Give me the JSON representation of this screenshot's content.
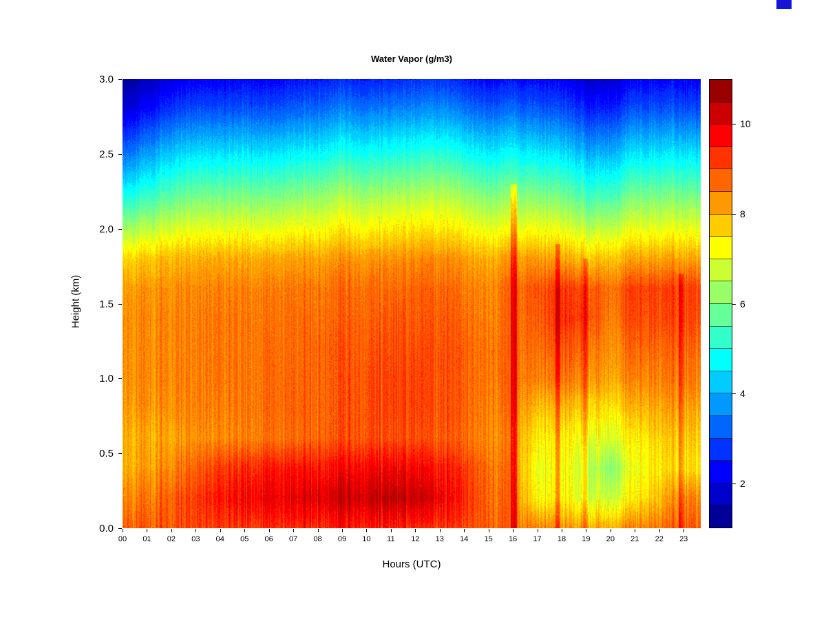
{
  "page": {
    "background": "#ffffff"
  },
  "corner_artifact_color": "#1515d6",
  "chart_data": {
    "type": "heatmap",
    "title": "Water Vapor (g/m3)",
    "xlabel": "Hours (UTC)",
    "ylabel": "Height (km)",
    "x_tick_labels": [
      "00",
      "01",
      "02",
      "03",
      "04",
      "05",
      "06",
      "07",
      "08",
      "09",
      "10",
      "11",
      "12",
      "13",
      "14",
      "15",
      "16",
      "17",
      "18",
      "19",
      "20",
      "21",
      "22",
      "23"
    ],
    "y_tick_values": [
      3.0,
      2.5,
      2.0,
      1.5,
      1.0,
      0.5,
      0.0
    ],
    "y_tick_labels": [
      "3.0",
      "2.5",
      "2.0",
      "1.5",
      "1.0",
      "0.5",
      "0.0"
    ],
    "x_axis_span": 23.7,
    "y_range": [
      0,
      3
    ],
    "value_range": [
      1,
      11
    ],
    "colorbar_ticks": [
      2,
      4,
      6,
      8,
      10
    ],
    "legend_position": "right",
    "grid_on": false,
    "colormap_colors": [
      "#000099",
      "#0000CC",
      "#0000FF",
      "#0033FF",
      "#0066FF",
      "#0099FF",
      "#00CCFF",
      "#00FFFF",
      "#33FFCC",
      "#66FF99",
      "#99FF66",
      "#CCFF33",
      "#FFFF00",
      "#FFCC00",
      "#FF9900",
      "#FF6600",
      "#FF3300",
      "#FF0000",
      "#CC0000",
      "#990000"
    ],
    "grid_heights_km": [
      3.0,
      2.8,
      2.6,
      2.4,
      2.2,
      2.0,
      1.8,
      1.6,
      1.4,
      1.2,
      1.0,
      0.8,
      0.6,
      0.4,
      0.2,
      0.0
    ],
    "grid_hours": [
      0,
      1,
      2,
      3,
      4,
      5,
      6,
      7,
      8,
      9,
      10,
      11,
      12,
      13,
      14,
      15,
      16,
      17,
      18,
      19,
      20,
      21,
      22,
      23
    ],
    "values_grid": [
      [
        1.2,
        1.6,
        2.0,
        2.2,
        2.2,
        2.3,
        2.2,
        2.4,
        2.5,
        2.6,
        2.5,
        2.6,
        2.7,
        2.8,
        2.5,
        2.3,
        2.4,
        2.3,
        2.2,
        1.8,
        1.8,
        2.2,
        2.3,
        2.2
      ],
      [
        1.8,
        2.3,
        2.8,
        3.0,
        3.0,
        3.1,
        3.0,
        3.2,
        3.3,
        3.5,
        3.4,
        3.5,
        3.6,
        3.7,
        3.4,
        3.2,
        3.3,
        3.1,
        3.0,
        2.6,
        2.6,
        3.0,
        3.1,
        3.0
      ],
      [
        2.8,
        3.3,
        3.8,
        4.0,
        4.0,
        4.1,
        4.0,
        4.2,
        4.3,
        4.5,
        4.4,
        4.5,
        4.6,
        4.7,
        4.4,
        4.2,
        4.3,
        4.1,
        4.0,
        3.6,
        3.6,
        4.0,
        4.1,
        4.0
      ],
      [
        3.8,
        4.3,
        4.8,
        5.0,
        5.0,
        5.1,
        5.0,
        5.2,
        5.3,
        5.5,
        5.4,
        5.5,
        5.6,
        5.7,
        5.4,
        5.2,
        5.3,
        5.1,
        5.0,
        4.6,
        4.6,
        5.0,
        5.1,
        5.0
      ],
      [
        5.0,
        5.4,
        5.8,
        6.0,
        6.0,
        6.1,
        6.0,
        6.2,
        6.3,
        6.5,
        6.4,
        6.5,
        6.6,
        6.7,
        6.4,
        6.2,
        6.3,
        6.1,
        6.0,
        5.6,
        5.6,
        6.0,
        6.1,
        6.0
      ],
      [
        6.3,
        6.6,
        6.9,
        7.0,
        7.0,
        7.1,
        7.0,
        7.2,
        7.2,
        7.4,
        7.3,
        7.4,
        7.5,
        7.5,
        7.3,
        7.1,
        7.2,
        7.1,
        7.0,
        6.7,
        6.7,
        7.0,
        7.1,
        7.0
      ],
      [
        7.6,
        7.8,
        8.0,
        8.0,
        8.1,
        8.1,
        8.1,
        8.2,
        8.2,
        8.3,
        8.3,
        8.3,
        8.4,
        8.4,
        8.2,
        8.1,
        8.3,
        8.2,
        8.1,
        7.9,
        7.9,
        8.1,
        8.2,
        8.1
      ],
      [
        8.2,
        8.3,
        8.4,
        8.4,
        8.5,
        8.5,
        8.5,
        8.6,
        8.6,
        8.7,
        8.7,
        8.7,
        8.8,
        8.8,
        8.6,
        8.5,
        8.8,
        8.9,
        9.2,
        9.1,
        8.7,
        9.1,
        9.2,
        9.1
      ],
      [
        8.3,
        8.4,
        8.5,
        8.5,
        8.6,
        8.6,
        8.6,
        8.7,
        8.7,
        8.8,
        8.8,
        8.9,
        8.9,
        8.9,
        8.7,
        8.6,
        8.8,
        8.8,
        9.3,
        9.2,
        8.6,
        9.0,
        9.1,
        9.0
      ],
      [
        8.3,
        8.4,
        8.5,
        8.5,
        8.6,
        8.6,
        8.7,
        8.7,
        8.8,
        8.9,
        8.9,
        9.0,
        9.0,
        9.0,
        8.8,
        8.7,
        8.8,
        8.6,
        8.9,
        8.8,
        8.4,
        8.7,
        8.8,
        8.7
      ],
      [
        8.3,
        8.4,
        8.5,
        8.5,
        8.6,
        8.6,
        8.7,
        8.8,
        8.8,
        8.9,
        9.0,
        9.1,
        9.1,
        9.0,
        8.8,
        8.7,
        8.8,
        8.4,
        8.6,
        8.5,
        8.2,
        8.4,
        8.6,
        8.5
      ],
      [
        8.2,
        8.3,
        8.4,
        8.5,
        8.5,
        8.6,
        8.7,
        8.8,
        8.8,
        8.9,
        9.0,
        9.1,
        9.1,
        9.0,
        8.8,
        8.6,
        8.7,
        7.8,
        7.9,
        7.8,
        7.6,
        7.9,
        8.2,
        8.1
      ],
      [
        8.0,
        8.1,
        8.2,
        8.3,
        8.4,
        8.5,
        8.6,
        8.7,
        8.8,
        8.9,
        9.0,
        9.0,
        9.0,
        8.9,
        8.7,
        8.5,
        8.5,
        7.3,
        7.4,
        7.2,
        7.0,
        7.3,
        7.8,
        7.7
      ],
      [
        8.0,
        8.2,
        8.5,
        8.8,
        9.2,
        9.4,
        9.5,
        9.6,
        9.6,
        9.7,
        9.8,
        9.8,
        9.8,
        9.6,
        9.2,
        8.8,
        8.6,
        7.0,
        7.2,
        6.8,
        6.2,
        7.0,
        7.6,
        7.5
      ],
      [
        8.4,
        8.6,
        8.9,
        9.2,
        9.6,
        9.8,
        9.9,
        10.0,
        10.1,
        10.2,
        10.3,
        10.4,
        10.3,
        10.0,
        9.4,
        8.9,
        8.7,
        7.2,
        7.3,
        7.0,
        6.8,
        7.3,
        8.0,
        8.4
      ],
      [
        8.8,
        8.9,
        9.0,
        9.1,
        9.2,
        9.3,
        9.3,
        9.4,
        9.4,
        9.5,
        9.5,
        9.5,
        9.4,
        9.3,
        9.1,
        9.0,
        8.8,
        8.4,
        8.3,
        8.2,
        8.2,
        8.4,
        8.7,
        8.8
      ]
    ],
    "streaks": [
      {
        "hour": 16.05,
        "half_width": 0.13,
        "boost": 1.1,
        "top_km": 2.3
      },
      {
        "hour": 17.85,
        "half_width": 0.1,
        "boost": 0.9,
        "top_km": 1.9
      },
      {
        "hour": 19.0,
        "half_width": 0.09,
        "boost": 0.8,
        "top_km": 1.8
      },
      {
        "hour": 22.9,
        "half_width": 0.1,
        "boost": 0.7,
        "top_km": 1.7
      }
    ]
  }
}
